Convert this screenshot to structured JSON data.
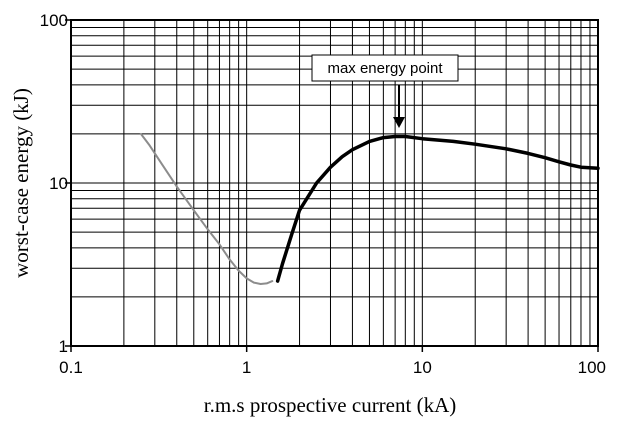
{
  "chart_data": {
    "type": "line",
    "title": "",
    "xlabel": "r.m.s prospective current (kA)",
    "ylabel": "worst-case energy (kJ)",
    "x_scale": "log",
    "y_scale": "log",
    "xlim": [
      0.1,
      100
    ],
    "ylim": [
      1,
      100
    ],
    "grid": true,
    "x_tick_labels": [
      "0.1",
      "1",
      "10",
      "100"
    ],
    "y_tick_labels": [
      "1",
      "10",
      "100"
    ],
    "series": [
      {
        "color": "#8c8c8c",
        "style": "thin",
        "points": [
          [
            0.25,
            20
          ],
          [
            0.28,
            17
          ],
          [
            0.33,
            13
          ],
          [
            0.4,
            9.5
          ],
          [
            0.5,
            6.8
          ],
          [
            0.6,
            5.2
          ],
          [
            0.7,
            4.2
          ],
          [
            0.8,
            3.4
          ],
          [
            0.9,
            2.9
          ],
          [
            1.0,
            2.6
          ],
          [
            1.1,
            2.45
          ],
          [
            1.2,
            2.4
          ],
          [
            1.3,
            2.42
          ],
          [
            1.4,
            2.5
          ]
        ]
      },
      {
        "color": "#000000",
        "style": "thick",
        "points": [
          [
            1.5,
            2.5
          ],
          [
            1.6,
            3.2
          ],
          [
            1.8,
            4.8
          ],
          [
            2.0,
            6.8
          ],
          [
            2.5,
            10
          ],
          [
            3.0,
            12.5
          ],
          [
            3.5,
            14.5
          ],
          [
            4.0,
            16
          ],
          [
            5.0,
            18
          ],
          [
            6.0,
            19
          ],
          [
            7.0,
            19.3
          ],
          [
            8.0,
            19.3
          ],
          [
            10,
            18.7
          ],
          [
            15,
            18
          ],
          [
            20,
            17.3
          ],
          [
            30,
            16.2
          ],
          [
            40,
            15.2
          ],
          [
            50,
            14.3
          ],
          [
            60,
            13.5
          ],
          [
            70,
            12.9
          ],
          [
            80,
            12.5
          ],
          [
            100,
            12.3
          ]
        ]
      }
    ],
    "annotations": [
      {
        "text": "max energy point",
        "x": 7.5,
        "y": 19.3,
        "arrow": "down"
      }
    ]
  }
}
